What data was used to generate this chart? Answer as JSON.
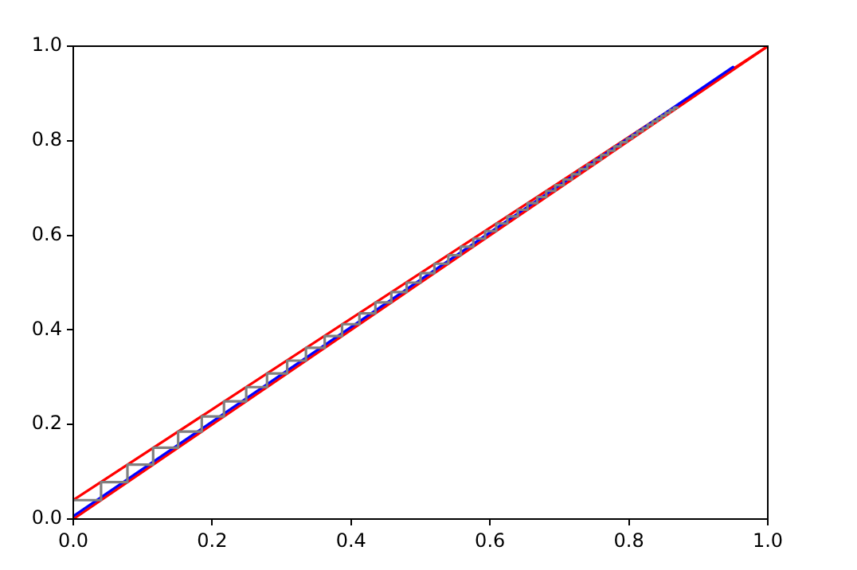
{
  "chart_data": {
    "type": "line",
    "xlim": [
      0,
      1
    ],
    "ylim": [
      0,
      1
    ],
    "xticks": [
      {
        "value": 0,
        "label": "0.0"
      },
      0.2,
      0.4,
      0.6,
      0.8,
      {
        "value": 1,
        "label": "1.0"
      }
    ],
    "yticks": [
      {
        "value": 0,
        "label": "0.0"
      },
      0.2,
      0.4,
      0.6,
      0.8,
      {
        "value": 1,
        "label": "1.0"
      }
    ],
    "grid": false,
    "legend": false,
    "marker": "none",
    "line_style": "solid",
    "series": [
      {
        "color": "#ff0000",
        "x": [
          0,
          1
        ],
        "values": [
          0.04,
          1
        ]
      },
      {
        "color": "#ff0000",
        "x": [
          0,
          1
        ],
        "values": [
          0,
          1
        ]
      },
      {
        "color": "#0000ff",
        "x": [
          0,
          0.95
        ],
        "values": [
          0.006,
          0.956
        ]
      },
      {
        "color": "#808080",
        "x": [
          0,
          0.04,
          0.04,
          0.078,
          0.078,
          0.115,
          0.115,
          0.151,
          0.151,
          0.185,
          0.185,
          0.217,
          0.217,
          0.249,
          0.249,
          0.279,
          0.279,
          0.308,
          0.308,
          0.335,
          0.335,
          0.362,
          0.362,
          0.387,
          0.387,
          0.412,
          0.412,
          0.435,
          0.435,
          0.458,
          0.458,
          0.48,
          0.48,
          0.5,
          0.5,
          0.52,
          0.52,
          0.54,
          0.54,
          0.558,
          0.558,
          0.576,
          0.576,
          0.593,
          0.593,
          0.609,
          0.609,
          0.625,
          0.625,
          0.64,
          0.64,
          0.654,
          0.654,
          0.668,
          0.668,
          0.681,
          0.681,
          0.694,
          0.694,
          0.706,
          0.706,
          0.718,
          0.718,
          0.729,
          0.729,
          0.74,
          0.74,
          0.75,
          0.75,
          0.76,
          0.76,
          0.77,
          0.77,
          0.779,
          0.779,
          0.788,
          0.788,
          0.797,
          0.797,
          0.805,
          0.805,
          0.812,
          0.812,
          0.82,
          0.82,
          0.827,
          0.827,
          0.834,
          0.834,
          0.841,
          0.841,
          0.847,
          0.847,
          0.853,
          0.853,
          0.859,
          0.859,
          0.865,
          0.865,
          0.87
        ],
        "values": [
          0.04,
          0.04,
          0.078,
          0.078,
          0.115,
          0.115,
          0.151,
          0.151,
          0.185,
          0.185,
          0.217,
          0.217,
          0.249,
          0.249,
          0.279,
          0.279,
          0.308,
          0.308,
          0.335,
          0.335,
          0.362,
          0.362,
          0.387,
          0.387,
          0.412,
          0.412,
          0.435,
          0.435,
          0.458,
          0.458,
          0.48,
          0.48,
          0.5,
          0.5,
          0.52,
          0.52,
          0.54,
          0.54,
          0.558,
          0.558,
          0.576,
          0.576,
          0.593,
          0.593,
          0.609,
          0.609,
          0.625,
          0.625,
          0.64,
          0.64,
          0.654,
          0.654,
          0.668,
          0.668,
          0.681,
          0.681,
          0.694,
          0.694,
          0.706,
          0.706,
          0.718,
          0.718,
          0.729,
          0.729,
          0.74,
          0.74,
          0.75,
          0.75,
          0.76,
          0.76,
          0.77,
          0.77,
          0.779,
          0.779,
          0.788,
          0.788,
          0.797,
          0.797,
          0.805,
          0.805,
          0.812,
          0.812,
          0.82,
          0.82,
          0.827,
          0.827,
          0.834,
          0.834,
          0.841,
          0.841,
          0.847,
          0.847,
          0.853,
          0.853,
          0.859,
          0.859,
          0.865,
          0.865,
          0.87,
          0.87
        ]
      }
    ]
  }
}
